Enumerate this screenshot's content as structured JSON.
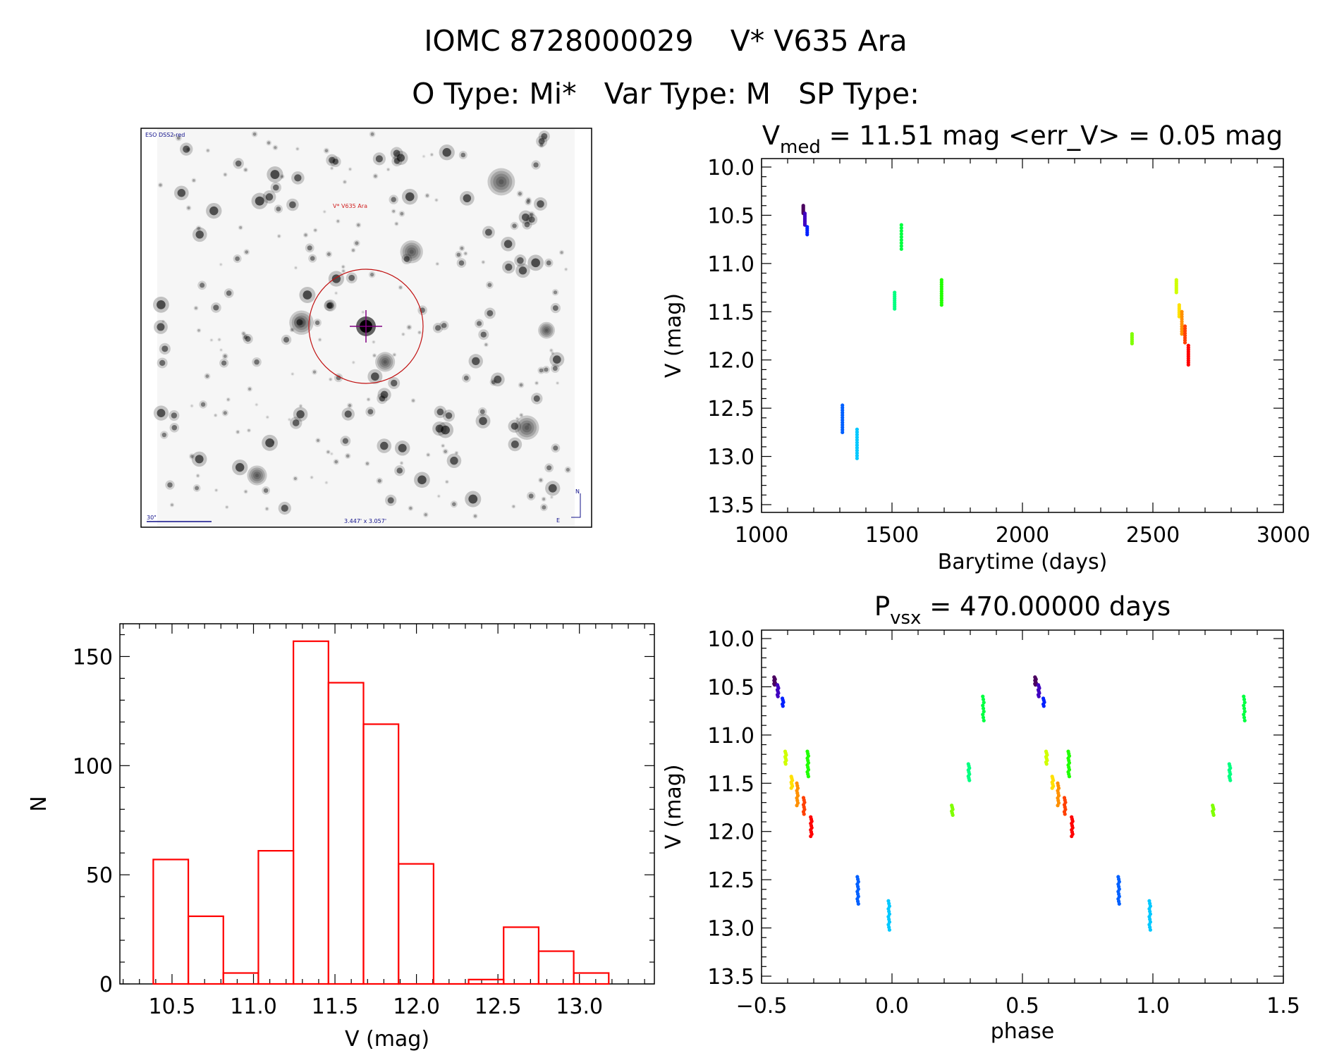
{
  "header": {
    "title": "IOMC 8728000029    V* V635 Ara",
    "subtitle": "O Type: Mi*   Var Type: M   SP Type:"
  },
  "finder_image": {
    "survey_label": "ESO DSS2-red",
    "target_label": "V* V635 Ara",
    "scale_label": "30\"",
    "fov_label": "3.447' x 3.057'",
    "north_label": "N",
    "east_label": "E"
  },
  "chart_data": [
    {
      "type": "scatter",
      "name": "light-curve",
      "title_main": "V",
      "title_sub": "med",
      "title_rest": " = 11.51 mag <err_V> = 0.05 mag",
      "xlabel": "Barytime (days)",
      "ylabel": "V (mag)",
      "xlim": [
        1000,
        3000
      ],
      "ylim": [
        10.0,
        13.5
      ],
      "y_inverted": true,
      "xticks": [
        "1000",
        "1500",
        "2000",
        "2500",
        "3000"
      ],
      "yticks": [
        "10.0",
        "10.5",
        "11.0",
        "11.5",
        "12.0",
        "12.5",
        "13.0",
        "13.5"
      ],
      "series": [
        {
          "t": 1160,
          "mag": [
            10.4,
            10.48
          ],
          "n": 8,
          "color": "#4a0060"
        },
        {
          "t": 1166,
          "mag": [
            10.48,
            10.6
          ],
          "n": 8,
          "color": "#4000c0"
        },
        {
          "t": 1175,
          "mag": [
            10.62,
            10.7
          ],
          "n": 5,
          "color": "#0020ff"
        },
        {
          "t": 1310,
          "mag": [
            12.47,
            12.75
          ],
          "n": 12,
          "color": "#0060ff"
        },
        {
          "t": 1366,
          "mag": [
            12.72,
            13.02
          ],
          "n": 12,
          "color": "#00c8ff"
        },
        {
          "t": 1510,
          "mag": [
            11.3,
            11.47
          ],
          "n": 9,
          "color": "#00ff80"
        },
        {
          "t": 1536,
          "mag": [
            10.6,
            10.85
          ],
          "n": 9,
          "color": "#00ff40"
        },
        {
          "t": 1690,
          "mag": [
            11.17,
            11.43
          ],
          "n": 12,
          "color": "#20ff00"
        },
        {
          "t": 2420,
          "mag": [
            11.73,
            11.83
          ],
          "n": 6,
          "color": "#80ff00"
        },
        {
          "t": 2590,
          "mag": [
            11.17,
            11.3
          ],
          "n": 8,
          "color": "#d0ff00"
        },
        {
          "t": 2601,
          "mag": [
            11.43,
            11.55
          ],
          "n": 7,
          "color": "#ffe000"
        },
        {
          "t": 2611,
          "mag": [
            11.5,
            11.73
          ],
          "n": 10,
          "color": "#ff9000"
        },
        {
          "t": 2623,
          "mag": [
            11.65,
            11.82
          ],
          "n": 8,
          "color": "#ff4000"
        },
        {
          "t": 2636,
          "mag": [
            11.85,
            12.05
          ],
          "n": 10,
          "color": "#ff0000"
        }
      ]
    },
    {
      "type": "bar",
      "name": "histogram",
      "xlabel": "V (mag)",
      "ylabel": "N",
      "xlim": [
        10.18,
        13.46
      ],
      "ylim": [
        0,
        165
      ],
      "xticks": [
        "10.5",
        "11.0",
        "11.5",
        "12.0",
        "12.5",
        "13.0"
      ],
      "yticks": [
        "0",
        "50",
        "100",
        "150"
      ],
      "bin_start": 10.385,
      "bin_width": 0.215,
      "values": [
        57,
        31,
        5,
        61,
        157,
        138,
        119,
        55,
        0,
        2,
        26,
        15,
        5
      ],
      "color": "#ff0000"
    },
    {
      "type": "scatter",
      "name": "phased-light-curve",
      "title_main": "P",
      "title_sub": "vsx",
      "title_rest": " = 470.00000 days",
      "period": 470.0,
      "epoch_phase_ref": {
        "t": 1160,
        "phase": -0.45
      },
      "xlabel": "phase",
      "ylabel": "V (mag)",
      "xlim": [
        -0.5,
        1.5
      ],
      "ylim": [
        10.0,
        13.5
      ],
      "y_inverted": true,
      "xticks": [
        "−0.5",
        "0.0",
        "0.5",
        "1.0",
        "1.5"
      ],
      "yticks": [
        "10.0",
        "10.5",
        "11.0",
        "11.5",
        "12.0",
        "12.5",
        "13.0",
        "13.5"
      ]
    }
  ]
}
